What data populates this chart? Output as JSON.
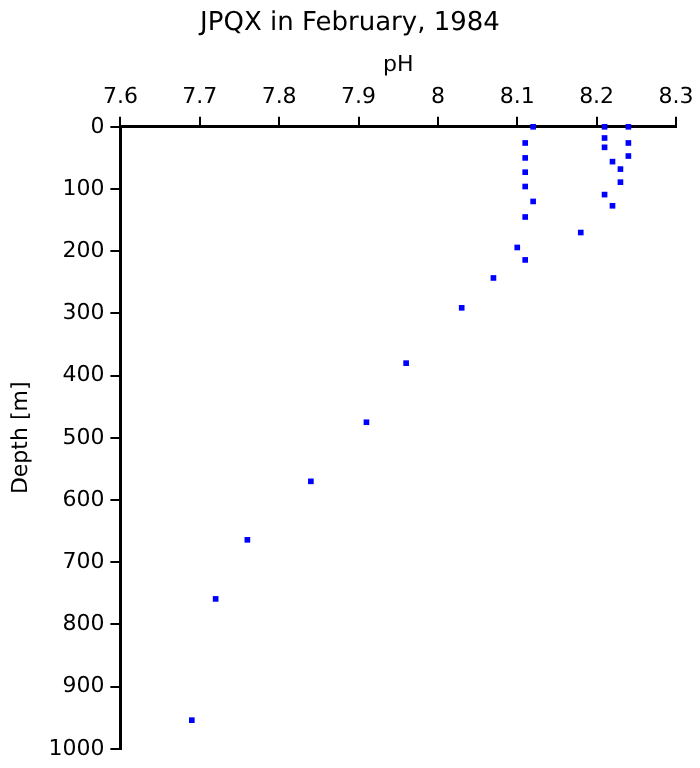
{
  "chart_data": {
    "type": "scatter",
    "title": "JPQX in February, 1984",
    "xlabel": "pH",
    "ylabel": "Depth [m]",
    "xlim": [
      7.6,
      8.3
    ],
    "xticks": [
      7.6,
      7.7,
      7.8,
      7.9,
      8,
      8.1,
      8.2,
      8.3
    ],
    "ylim": [
      1000,
      0
    ],
    "yticks": [
      0,
      100,
      200,
      300,
      400,
      500,
      600,
      700,
      800,
      900,
      1000
    ],
    "grid": false,
    "marker": "square",
    "series": [
      {
        "color": "#0000ff",
        "x": [
          8.12,
          8.11,
          8.11,
          8.11,
          8.11,
          8.12,
          8.11,
          8.1,
          8.11,
          8.21,
          8.21,
          8.21,
          8.21,
          8.24,
          8.24,
          8.24,
          8.22,
          8.23,
          8.23,
          8.22,
          8.18,
          8.07,
          8.03,
          7.96,
          7.91,
          7.84,
          7.76,
          7.72,
          7.69
        ],
        "values": [
          0,
          26,
          50,
          73,
          96,
          120,
          145,
          194,
          214,
          0,
          18,
          33,
          109,
          0,
          26,
          47,
          56,
          68,
          89,
          127,
          170,
          243,
          291,
          380,
          475,
          570,
          664,
          759,
          954
        ]
      }
    ]
  }
}
